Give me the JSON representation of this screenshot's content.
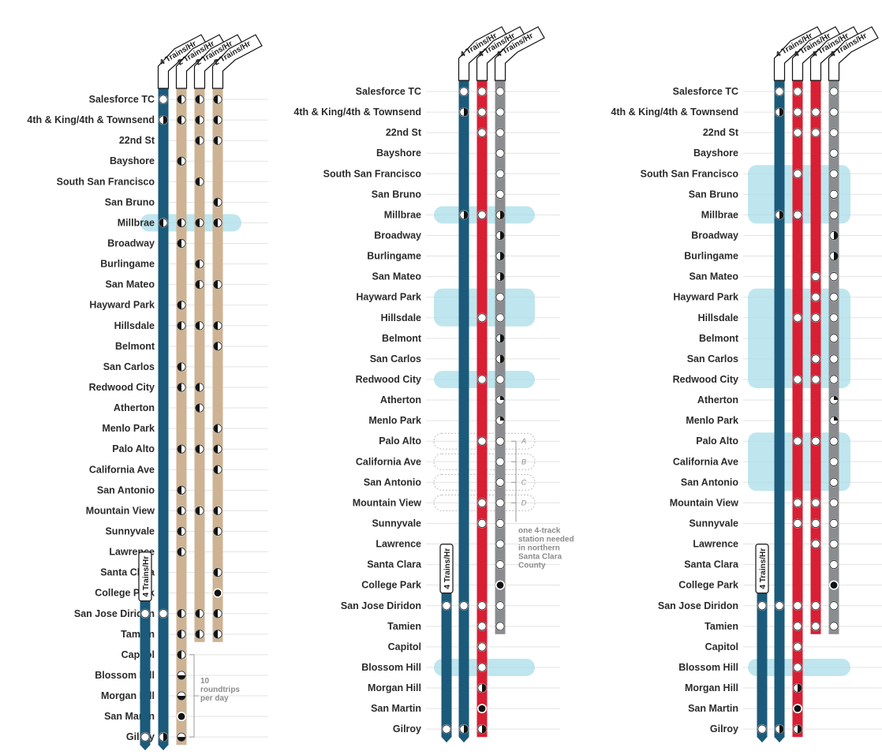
{
  "colors": {
    "blue": "#1b5a7a",
    "tan": "#cdb393",
    "red": "#d81f33",
    "grey": "#8a8c8f",
    "highlight": "#a9dde8",
    "gridline": "#e3e3e3"
  },
  "panels": [
    {
      "id": "panel-1",
      "line_tags": [
        "4 Trains/Hr",
        "2 Trains/Hr",
        "2 Trains/Hr",
        "2 Trains/Hr"
      ],
      "south_tag": "4 Trains/Hr",
      "note": [
        "10",
        "roundtrips",
        "per day"
      ],
      "stations": [
        "Salesforce TC",
        "4th & King/4th & Townsend",
        "22nd St",
        "Bayshore",
        "South San Francisco",
        "San Bruno",
        "Millbrae",
        "Broadway",
        "Burlingame",
        "San Mateo",
        "Hayward Park",
        "Hillsdale",
        "Belmont",
        "San Carlos",
        "Redwood City",
        "Atherton",
        "Menlo Park",
        "Palo Alto",
        "California Ave",
        "San Antonio",
        "Mountain View",
        "Sunnyvale",
        "Lawrence",
        "Santa Clara",
        "College Park",
        "San Jose Diridon",
        "Tamien",
        "Capitol",
        "Blossom Hill",
        "Morgan Hill",
        "San Martin",
        "Gilroy"
      ],
      "lines": [
        {
          "color": "blue",
          "from": 0,
          "to": 31,
          "arrow": true,
          "stops": [
            [
              0,
              "o"
            ],
            [
              1,
              "hr"
            ],
            [
              6,
              "hl"
            ],
            [
              25,
              "o"
            ],
            [
              31,
              "hr"
            ]
          ]
        },
        {
          "color": "tan",
          "from": 0,
          "to": 31,
          "arrow": false,
          "stops": [
            [
              0,
              "hl"
            ],
            [
              1,
              "hl"
            ],
            [
              3,
              "hl"
            ],
            [
              6,
              "hl"
            ],
            [
              7,
              "hl"
            ],
            [
              10,
              "hl"
            ],
            [
              11,
              "hl"
            ],
            [
              13,
              "hl"
            ],
            [
              14,
              "hl"
            ],
            [
              17,
              "hl"
            ],
            [
              19,
              "hl"
            ],
            [
              20,
              "hl"
            ],
            [
              21,
              "hl"
            ],
            [
              22,
              "hl"
            ],
            [
              25,
              "hl"
            ],
            [
              26,
              "hl"
            ],
            [
              27,
              "hl"
            ],
            [
              28,
              "hb"
            ],
            [
              29,
              "hb"
            ],
            [
              30,
              "f"
            ],
            [
              31,
              "hb"
            ]
          ]
        },
        {
          "color": "tan",
          "from": 0,
          "to": 26,
          "arrow": false,
          "stops": [
            [
              0,
              "hl"
            ],
            [
              1,
              "hl"
            ],
            [
              2,
              "hl"
            ],
            [
              4,
              "hl"
            ],
            [
              6,
              "hl"
            ],
            [
              8,
              "hl"
            ],
            [
              9,
              "hl"
            ],
            [
              11,
              "hl"
            ],
            [
              14,
              "hl"
            ],
            [
              15,
              "hl"
            ],
            [
              17,
              "hl"
            ],
            [
              20,
              "hl"
            ],
            [
              25,
              "hl"
            ],
            [
              26,
              "hl"
            ]
          ]
        },
        {
          "color": "tan",
          "from": 0,
          "to": 26,
          "arrow": false,
          "stops": [
            [
              0,
              "hl"
            ],
            [
              1,
              "hl"
            ],
            [
              2,
              "hl"
            ],
            [
              5,
              "hl"
            ],
            [
              6,
              "hl"
            ],
            [
              9,
              "hl"
            ],
            [
              11,
              "hl"
            ],
            [
              12,
              "hl"
            ],
            [
              16,
              "hl"
            ],
            [
              17,
              "hl"
            ],
            [
              18,
              "hl"
            ],
            [
              20,
              "hl"
            ],
            [
              21,
              "hl"
            ],
            [
              23,
              "hl"
            ],
            [
              24,
              "f"
            ],
            [
              25,
              "hl"
            ],
            [
              26,
              "hl"
            ]
          ]
        },
        {
          "color": "blue",
          "from": 25,
          "to": 31,
          "arrow": true,
          "short": true,
          "stops": [
            [
              25,
              "o"
            ],
            [
              31,
              "o"
            ]
          ]
        }
      ],
      "highlights": [
        [
          6,
          6
        ]
      ]
    },
    {
      "id": "panel-2",
      "line_tags": [
        "4 Trains/Hr",
        "4 Trains/Hr",
        "4 Trains/Hr"
      ],
      "south_tag": "4 Trains/Hr",
      "note": [
        "one 4-track",
        "station needed",
        "in northern",
        "Santa Clara",
        "County"
      ],
      "letters": [
        "A",
        "B",
        "C",
        "D"
      ],
      "stations": [
        "Salesforce TC",
        "4th & King/4th & Townsend",
        "22nd St",
        "Bayshore",
        "South San Francisco",
        "San Bruno",
        "Millbrae",
        "Broadway",
        "Burlingame",
        "San Mateo",
        "Hayward Park",
        "Hillsdale",
        "Belmont",
        "San Carlos",
        "Redwood City",
        "Atherton",
        "Menlo Park",
        "Palo Alto",
        "California Ave",
        "San Antonio",
        "Mountain View",
        "Sunnyvale",
        "Lawrence",
        "Santa Clara",
        "College Park",
        "San Jose Diridon",
        "Tamien",
        "Capitol",
        "Blossom Hill",
        "Morgan Hill",
        "San Martin",
        "Gilroy"
      ],
      "lines": [
        {
          "color": "blue",
          "from": 0,
          "to": 31,
          "arrow": true,
          "stops": [
            [
              0,
              "o"
            ],
            [
              1,
              "hr"
            ],
            [
              6,
              "hr"
            ],
            [
              25,
              "o"
            ],
            [
              31,
              "hr"
            ]
          ]
        },
        {
          "color": "red",
          "from": 0,
          "to": 31,
          "arrow": false,
          "stops": [
            [
              0,
              "o"
            ],
            [
              1,
              "o"
            ],
            [
              2,
              "o"
            ],
            [
              6,
              "o"
            ],
            [
              11,
              "o"
            ],
            [
              14,
              "o"
            ],
            [
              17,
              "o"
            ],
            [
              20,
              "o"
            ],
            [
              21,
              "o"
            ],
            [
              25,
              "o"
            ],
            [
              26,
              "o"
            ],
            [
              27,
              "o"
            ],
            [
              28,
              "o"
            ],
            [
              29,
              "hr"
            ],
            [
              30,
              "f"
            ],
            [
              31,
              "hr"
            ]
          ]
        },
        {
          "color": "grey",
          "from": 0,
          "to": 26,
          "arrow": false,
          "stops": [
            [
              0,
              "o"
            ],
            [
              1,
              "o"
            ],
            [
              2,
              "o"
            ],
            [
              3,
              "o"
            ],
            [
              4,
              "o"
            ],
            [
              5,
              "o"
            ],
            [
              6,
              "hr"
            ],
            [
              7,
              "hr"
            ],
            [
              8,
              "hr"
            ],
            [
              9,
              "hr"
            ],
            [
              10,
              "o"
            ],
            [
              11,
              "o"
            ],
            [
              12,
              "hr"
            ],
            [
              13,
              "hr"
            ],
            [
              14,
              "o"
            ],
            [
              15,
              "q"
            ],
            [
              16,
              "q"
            ],
            [
              17,
              "o"
            ],
            [
              18,
              "o"
            ],
            [
              19,
              "o"
            ],
            [
              20,
              "o"
            ],
            [
              21,
              "o"
            ],
            [
              22,
              "o"
            ],
            [
              23,
              "o"
            ],
            [
              24,
              "f"
            ],
            [
              25,
              "o"
            ],
            [
              26,
              "o"
            ]
          ]
        },
        {
          "color": "blue",
          "from": 25,
          "to": 31,
          "arrow": true,
          "short": true,
          "stops": [
            [
              25,
              "o"
            ],
            [
              31,
              "o"
            ]
          ]
        }
      ],
      "highlights": [
        [
          6,
          6
        ],
        [
          10,
          11
        ],
        [
          14,
          14
        ],
        [
          28,
          28
        ]
      ],
      "dashed": [
        17,
        18,
        19,
        20
      ]
    },
    {
      "id": "panel-3",
      "line_tags": [
        "4 Trains/Hr",
        "4 Trains/Hr",
        "4 Trains/Hr",
        "4 Trains/Hr"
      ],
      "south_tag": "4 Trains/Hr",
      "stations": [
        "Salesforce TC",
        "4th & King/4th & Townsend",
        "22nd St",
        "Bayshore",
        "South San Francisco",
        "San Bruno",
        "Millbrae",
        "Broadway",
        "Burlingame",
        "San Mateo",
        "Hayward Park",
        "Hillsdale",
        "Belmont",
        "San Carlos",
        "Redwood City",
        "Atherton",
        "Menlo Park",
        "Palo Alto",
        "California Ave",
        "San Antonio",
        "Mountain View",
        "Sunnyvale",
        "Lawrence",
        "Santa Clara",
        "College Park",
        "San Jose Diridon",
        "Tamien",
        "Capitol",
        "Blossom Hill",
        "Morgan Hill",
        "San Martin",
        "Gilroy"
      ],
      "lines": [
        {
          "color": "blue",
          "from": 0,
          "to": 31,
          "arrow": true,
          "stops": [
            [
              0,
              "o"
            ],
            [
              1,
              "hr"
            ],
            [
              6,
              "hr"
            ],
            [
              25,
              "o"
            ],
            [
              31,
              "hr"
            ]
          ]
        },
        {
          "color": "red",
          "from": 0,
          "to": 31,
          "arrow": false,
          "stops": [
            [
              0,
              "o"
            ],
            [
              1,
              "o"
            ],
            [
              2,
              "o"
            ],
            [
              4,
              "o"
            ],
            [
              6,
              "o"
            ],
            [
              11,
              "o"
            ],
            [
              14,
              "o"
            ],
            [
              17,
              "o"
            ],
            [
              20,
              "o"
            ],
            [
              21,
              "o"
            ],
            [
              25,
              "o"
            ],
            [
              26,
              "o"
            ],
            [
              27,
              "o"
            ],
            [
              28,
              "o"
            ],
            [
              29,
              "hr"
            ],
            [
              30,
              "f"
            ],
            [
              31,
              "hr"
            ]
          ]
        },
        {
          "color": "red",
          "from": 0,
          "to": 26,
          "arrow": false,
          "stops": [
            [
              1,
              "o"
            ],
            [
              2,
              "o"
            ],
            [
              9,
              "o"
            ],
            [
              10,
              "o"
            ],
            [
              11,
              "o"
            ],
            [
              13,
              "o"
            ],
            [
              14,
              "o"
            ],
            [
              17,
              "o"
            ],
            [
              20,
              "o"
            ],
            [
              21,
              "o"
            ],
            [
              22,
              "o"
            ],
            [
              25,
              "o"
            ],
            [
              26,
              "o"
            ]
          ]
        },
        {
          "color": "grey",
          "from": 0,
          "to": 26,
          "arrow": false,
          "stops": [
            [
              0,
              "o"
            ],
            [
              1,
              "o"
            ],
            [
              2,
              "o"
            ],
            [
              3,
              "o"
            ],
            [
              4,
              "o"
            ],
            [
              5,
              "o"
            ],
            [
              6,
              "o"
            ],
            [
              7,
              "hr"
            ],
            [
              8,
              "hr"
            ],
            [
              9,
              "o"
            ],
            [
              10,
              "o"
            ],
            [
              11,
              "o"
            ],
            [
              12,
              "o"
            ],
            [
              13,
              "o"
            ],
            [
              14,
              "o"
            ],
            [
              15,
              "q"
            ],
            [
              16,
              "q"
            ],
            [
              17,
              "o"
            ],
            [
              18,
              "o"
            ],
            [
              19,
              "o"
            ],
            [
              20,
              "o"
            ],
            [
              21,
              "o"
            ],
            [
              22,
              "o"
            ],
            [
              23,
              "o"
            ],
            [
              24,
              "f"
            ],
            [
              25,
              "o"
            ],
            [
              26,
              "o"
            ]
          ]
        },
        {
          "color": "blue",
          "from": 25,
          "to": 31,
          "arrow": true,
          "short": true,
          "stops": [
            [
              25,
              "o"
            ],
            [
              31,
              "o"
            ]
          ]
        }
      ],
      "highlights": [
        [
          4,
          6
        ],
        [
          10,
          14
        ],
        [
          17,
          19
        ],
        [
          28,
          28
        ]
      ]
    }
  ]
}
